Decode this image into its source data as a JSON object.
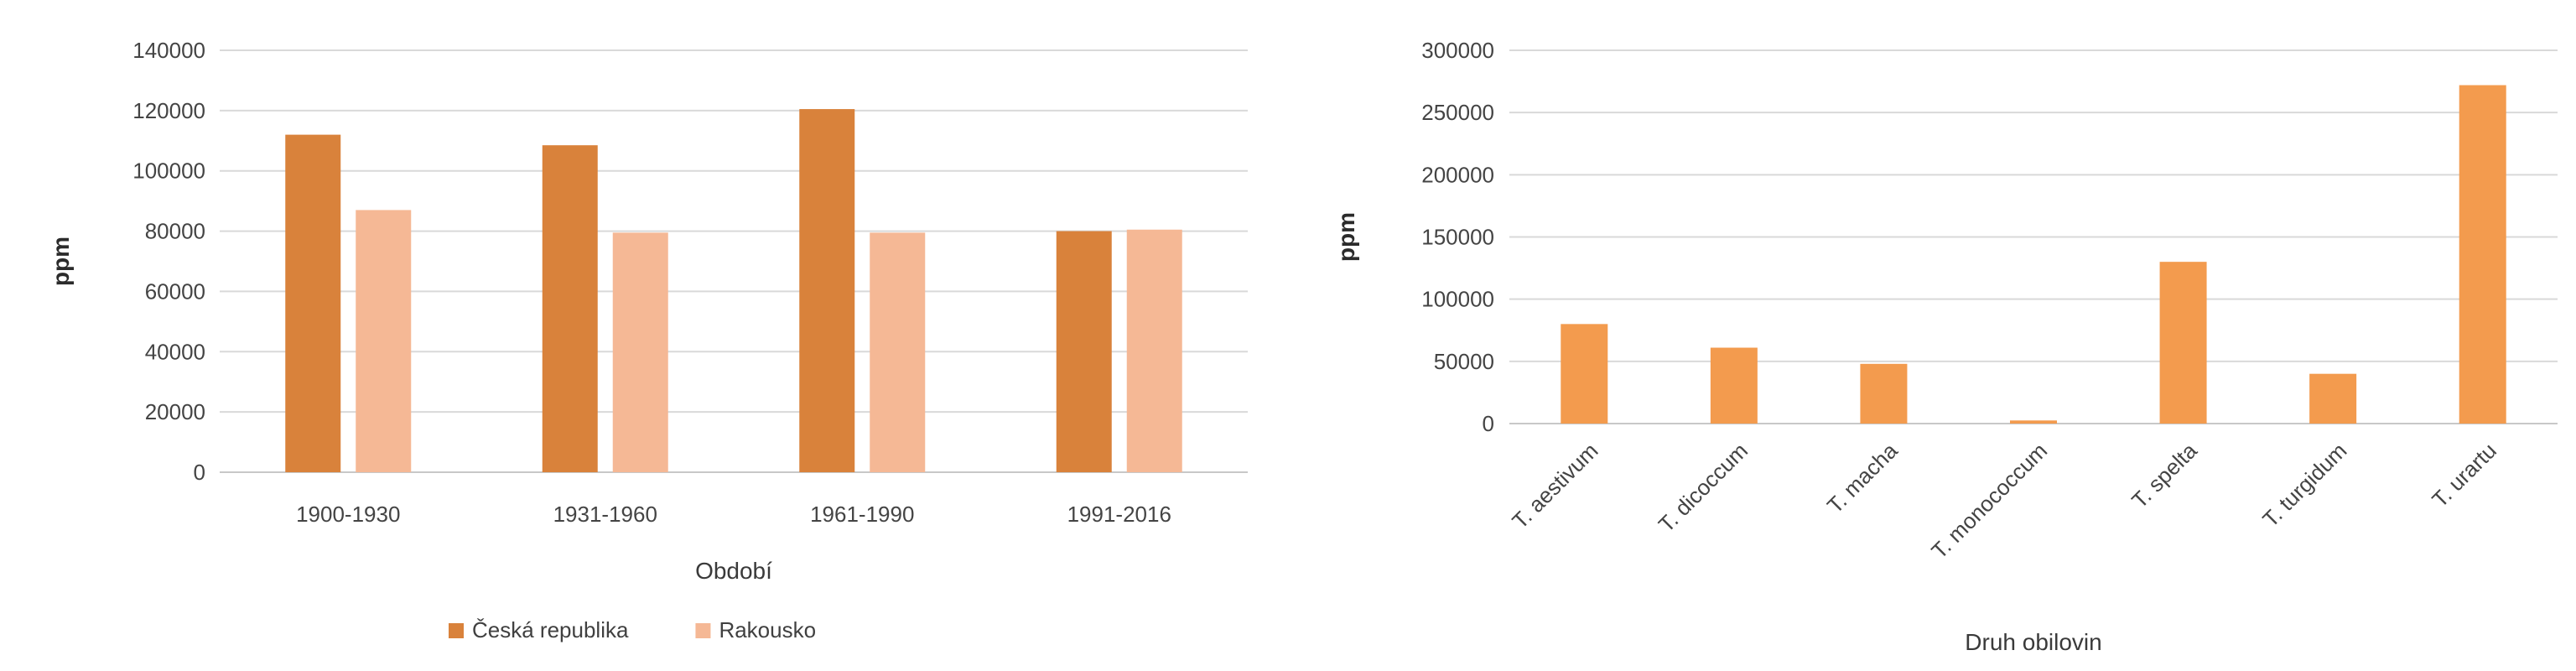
{
  "chart_data": [
    {
      "type": "bar",
      "title": "",
      "xlabel": "Období",
      "ylabel": "ppm",
      "ylim": [
        0,
        140000
      ],
      "ytick_step": 20000,
      "grid": true,
      "legend_position": "bottom",
      "categories": [
        "1900-1930",
        "1931-1960",
        "1961-1990",
        "1991-2016"
      ],
      "series": [
        {
          "name": "Česká republika",
          "color": "#d9823b",
          "values": [
            112000,
            108500,
            120500,
            80000
          ]
        },
        {
          "name": "Rakousko",
          "color": "#f5b895",
          "values": [
            87000,
            79500,
            79500,
            80500
          ]
        }
      ]
    },
    {
      "type": "bar",
      "title": "",
      "xlabel": "Druh obilovin",
      "ylabel": "ppm",
      "ylim": [
        0,
        300000
      ],
      "ytick_step": 50000,
      "grid": true,
      "categories": [
        "T. aestivum",
        "T. dicoccum",
        "T. macha",
        "T. monococcum",
        "T. spelta",
        "T. turgidum",
        "T. urartu"
      ],
      "series": [
        {
          "color": "#f39b4e",
          "values": [
            80000,
            61000,
            48000,
            2500,
            130000,
            40000,
            272000
          ]
        }
      ]
    }
  ]
}
